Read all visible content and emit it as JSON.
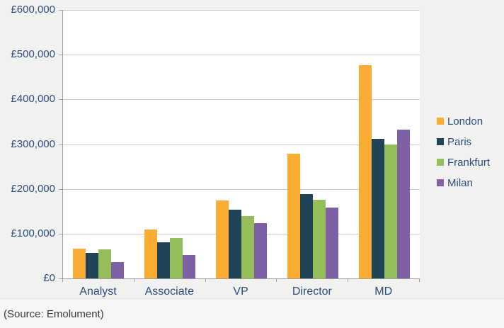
{
  "chart_data": {
    "type": "bar",
    "title": "",
    "xlabel": "",
    "ylabel": "",
    "grid": true,
    "legend_position": "right",
    "categories": [
      "Analyst",
      "Associate",
      "VP",
      "Director",
      "MD"
    ],
    "series": [
      {
        "name": "London",
        "color": "#FBAC33",
        "values": [
          67000,
          109000,
          174000,
          279000,
          477000
        ]
      },
      {
        "name": "Paris",
        "color": "#1F4457",
        "values": [
          57000,
          81000,
          154000,
          189000,
          312000
        ]
      },
      {
        "name": "Frankfurt",
        "color": "#95BE5A",
        "values": [
          65000,
          90000,
          139000,
          175000,
          299000
        ]
      },
      {
        "name": "Milan",
        "color": "#7E61A5",
        "values": [
          36000,
          53000,
          124000,
          159000,
          333000
        ]
      }
    ],
    "ylim": [
      0,
      600000
    ],
    "yticks": [
      0,
      100000,
      200000,
      300000,
      400000,
      500000,
      600000
    ],
    "ytick_labels": [
      "£0",
      "£100,000",
      "£200,000",
      "£300,000",
      "£400,000",
      "£500,000",
      "£600,000"
    ]
  },
  "caption": {
    "text": "(Source: Emolument)"
  },
  "colors": {
    "background": "#F1F1F0",
    "caption_background": "#F5F5F4",
    "caption_divider": "#E3E3E2",
    "plot_background": "#FFFFFF",
    "gridline": "#C9C9C9",
    "axis": "#9E9E9E",
    "axis_text": "#2B4C7D",
    "legend_text": "#2B4C7D",
    "caption_text": "#3B3B3B"
  }
}
